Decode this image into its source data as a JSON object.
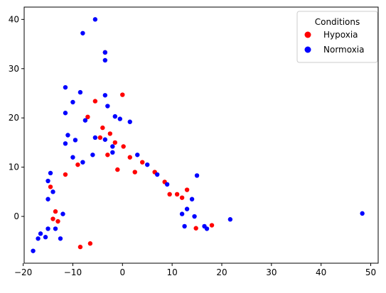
{
  "chart_data": {
    "type": "scatter",
    "title": "",
    "xlabel": "",
    "ylabel": "",
    "xlim": [
      -19.8,
      51.5
    ],
    "ylim": [
      -9.5,
      42.5
    ],
    "xticks": [
      -20,
      -10,
      0,
      10,
      20,
      30,
      40,
      50
    ],
    "yticks": [
      0,
      10,
      20,
      30,
      40
    ],
    "grid": false,
    "legend": {
      "title": "Conditions",
      "placement": "top-right"
    },
    "series": [
      {
        "name": "Hypoxia",
        "color": "#ff0000",
        "points": [
          [
            -3.5,
            33.3
          ],
          [
            0.0,
            24.7
          ],
          [
            -5.5,
            23.4
          ],
          [
            -7.0,
            20.2
          ],
          [
            -4.0,
            18.0
          ],
          [
            -2.5,
            16.8
          ],
          [
            -4.5,
            16.0
          ],
          [
            0.2,
            14.2
          ],
          [
            -1.5,
            15.0
          ],
          [
            13.0,
            5.4
          ],
          [
            18.0,
            -1.8
          ],
          [
            14.8,
            -2.4
          ],
          [
            -8.5,
            -6.2
          ],
          [
            -6.5,
            -5.5
          ],
          [
            -13.0,
            -1.0
          ],
          [
            -14.0,
            -0.5
          ],
          [
            -13.5,
            1.0
          ],
          [
            11.0,
            4.5
          ],
          [
            12.0,
            3.8
          ],
          [
            -14.5,
            6.0
          ],
          [
            -11.5,
            8.5
          ],
          [
            -9.0,
            10.5
          ],
          [
            -3.0,
            12.5
          ],
          [
            1.5,
            12.0
          ],
          [
            4.0,
            11.0
          ],
          [
            6.5,
            9.0
          ],
          [
            8.5,
            7.0
          ],
          [
            9.5,
            4.5
          ],
          [
            -1.0,
            9.5
          ],
          [
            2.5,
            9.0
          ]
        ]
      },
      {
        "name": "Normoxia",
        "color": "#0000ff",
        "points": [
          [
            -5.5,
            40.0
          ],
          [
            -8.0,
            37.2
          ],
          [
            -3.5,
            33.3
          ],
          [
            -3.5,
            31.7
          ],
          [
            -11.5,
            26.2
          ],
          [
            -8.5,
            25.2
          ],
          [
            -3.5,
            24.6
          ],
          [
            -10.0,
            23.2
          ],
          [
            -11.5,
            21.0
          ],
          [
            -3.0,
            22.4
          ],
          [
            -7.5,
            19.5
          ],
          [
            -1.5,
            20.3
          ],
          [
            -0.5,
            19.8
          ],
          [
            1.5,
            19.2
          ],
          [
            -11.0,
            16.5
          ],
          [
            -9.5,
            15.5
          ],
          [
            -5.5,
            16.0
          ],
          [
            -3.5,
            15.6
          ],
          [
            -11.5,
            14.8
          ],
          [
            -2.0,
            14.2
          ],
          [
            15.0,
            8.3
          ],
          [
            48.3,
            0.6
          ],
          [
            21.7,
            -0.6
          ],
          [
            -18.0,
            -7.0
          ],
          [
            -17.0,
            -4.5
          ],
          [
            -16.5,
            -3.5
          ],
          [
            -15.5,
            -4.2
          ],
          [
            -15.0,
            -2.5
          ],
          [
            -14.5,
            8.8
          ],
          [
            -15.0,
            7.2
          ],
          [
            -15.0,
            3.5
          ],
          [
            -14.0,
            5.0
          ],
          [
            16.5,
            -2.0
          ],
          [
            17.0,
            -2.5
          ],
          [
            14.0,
            3.5
          ],
          [
            13.0,
            1.5
          ],
          [
            12.5,
            -2.0
          ],
          [
            12.0,
            0.5
          ],
          [
            14.5,
            0.0
          ],
          [
            -13.5,
            -2.5
          ],
          [
            -12.5,
            -4.5
          ],
          [
            -12.0,
            0.5
          ],
          [
            -10.0,
            12.0
          ],
          [
            -8.0,
            11.0
          ],
          [
            -6.0,
            12.5
          ],
          [
            -2.0,
            13.0
          ],
          [
            3.0,
            12.5
          ],
          [
            5.0,
            10.5
          ],
          [
            7.0,
            8.5
          ],
          [
            9.0,
            6.5
          ]
        ]
      }
    ]
  }
}
